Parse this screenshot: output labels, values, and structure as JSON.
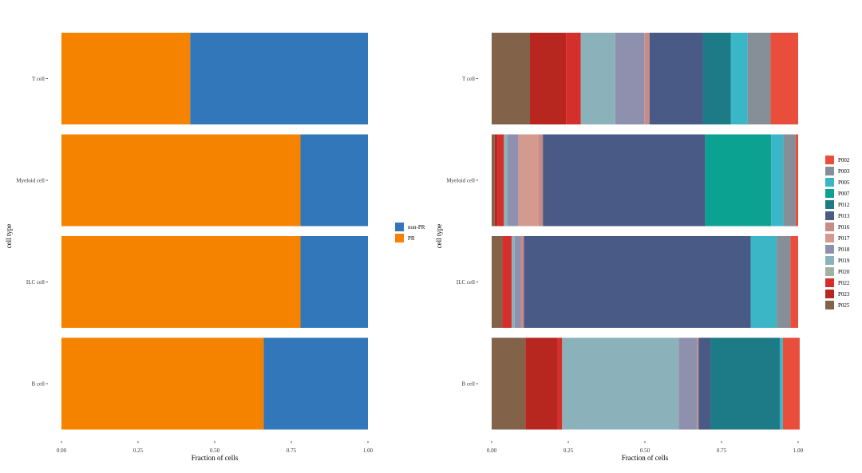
{
  "chart_data": [
    {
      "type": "stacked-bar-horizontal",
      "xlabel": "Fraction of cells",
      "ylabel": "cell type",
      "xlim": [
        0,
        1
      ],
      "x_ticks": [
        "0.00",
        "0.25",
        "0.50",
        "0.75",
        "1.00"
      ],
      "categories": [
        "T cell",
        "Myeloid cell",
        "ILC cell",
        "B cell"
      ],
      "legend": {
        "position": "right",
        "items": [
          "non-PR",
          "PR"
        ]
      },
      "series": [
        {
          "name": "PR",
          "color": "#F58300",
          "values": [
            0.42,
            0.78,
            0.78,
            0.66
          ]
        },
        {
          "name": "non-PR",
          "color": "#3277B9",
          "values": [
            0.58,
            0.22,
            0.22,
            0.34
          ]
        }
      ]
    },
    {
      "type": "stacked-bar-horizontal",
      "xlabel": "Fraction of cells",
      "ylabel": "cell type",
      "xlim": [
        0,
        1
      ],
      "x_ticks": [
        "0.00",
        "0.25",
        "0.50",
        "0.75",
        "1.00"
      ],
      "categories": [
        "T cell",
        "Myeloid cell",
        "ILC cell",
        "B cell"
      ],
      "legend": {
        "position": "right",
        "items": [
          "P002",
          "P003",
          "P005",
          "P007",
          "P012",
          "P013",
          "P016",
          "P017",
          "P018",
          "P019",
          "P020",
          "P022",
          "P023",
          "P025"
        ]
      },
      "series": [
        {
          "name": "P025",
          "color": "#826249",
          "values": [
            0.125,
            0.01,
            0.035,
            0.11
          ]
        },
        {
          "name": "P023",
          "color": "#B8271F",
          "values": [
            0.118,
            0.01,
            0.0,
            0.105
          ]
        },
        {
          "name": "P022",
          "color": "#D42F2B",
          "values": [
            0.048,
            0.02,
            0.03,
            0.015
          ]
        },
        {
          "name": "P020",
          "color": "#A0B2A2",
          "values": [
            0.0,
            0.0,
            0.0,
            0.0
          ]
        },
        {
          "name": "P019",
          "color": "#8BB2BB",
          "values": [
            0.112,
            0.012,
            0.01,
            0.38
          ]
        },
        {
          "name": "P018",
          "color": "#8E91AE",
          "values": [
            0.095,
            0.035,
            0.02,
            0.06
          ]
        },
        {
          "name": "P017",
          "color": "#D49A90",
          "values": [
            0.0,
            0.065,
            0.0,
            0.0
          ]
        },
        {
          "name": "P016",
          "color": "#C68C85",
          "values": [
            0.017,
            0.015,
            0.01,
            0.005
          ]
        },
        {
          "name": "P013",
          "color": "#4A5A87",
          "values": [
            0.175,
            0.53,
            0.74,
            0.04
          ]
        },
        {
          "name": "P012",
          "color": "#1C7B87",
          "values": [
            0.09,
            0.0,
            0.0,
            0.225
          ]
        },
        {
          "name": "P007",
          "color": "#0CA291",
          "values": [
            0.0,
            0.215,
            0.0,
            0.0
          ]
        },
        {
          "name": "P005",
          "color": "#3BB6C6",
          "values": [
            0.055,
            0.04,
            0.085,
            0.01
          ]
        },
        {
          "name": "P003",
          "color": "#868F97",
          "values": [
            0.075,
            0.04,
            0.045,
            0.0
          ]
        },
        {
          "name": "P002",
          "color": "#E84E3B",
          "values": [
            0.09,
            0.008,
            0.025,
            0.055
          ]
        }
      ]
    }
  ]
}
